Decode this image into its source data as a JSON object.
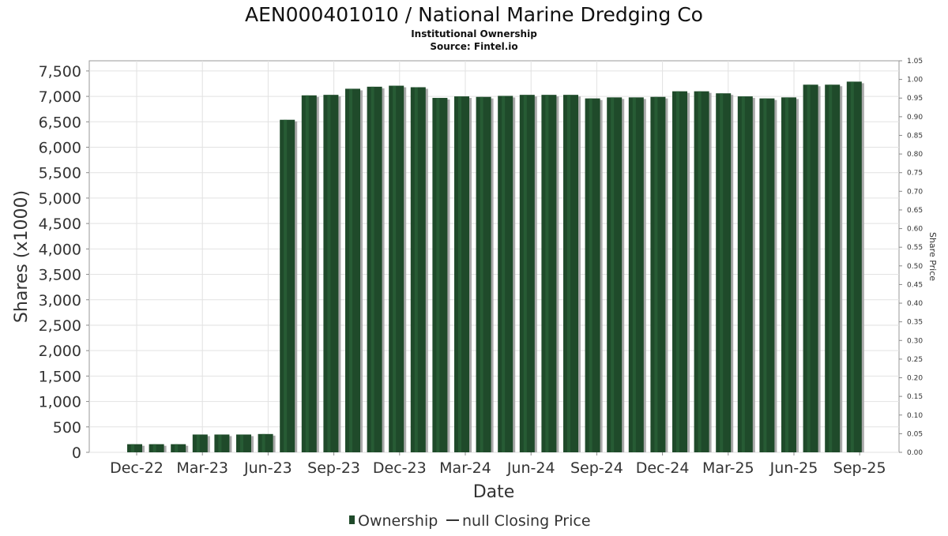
{
  "chart_data": {
    "type": "bar",
    "title": "AEN000401010 / National Marine Dredging Co",
    "subtitle": "Institutional Ownership",
    "source": "Source: Fintel.io",
    "xlabel": "Date",
    "ylabel": "Shares (x1000)",
    "y2label": "Share Price",
    "ylim": [
      0,
      7700
    ],
    "y2lim": [
      0,
      1.05
    ],
    "yticks": [
      "0",
      "500",
      "1,000",
      "1,500",
      "2,000",
      "2,500",
      "3,000",
      "3,500",
      "4,000",
      "4,500",
      "5,000",
      "5,500",
      "6,000",
      "6,500",
      "7,000",
      "7,500"
    ],
    "y2ticks": [
      "0.00",
      "0.05",
      "0.10",
      "0.15",
      "0.20",
      "0.25",
      "0.30",
      "0.35",
      "0.40",
      "0.45",
      "0.50",
      "0.55",
      "0.60",
      "0.65",
      "0.70",
      "0.75",
      "0.80",
      "0.85",
      "0.90",
      "0.95",
      "1.00",
      "1.05"
    ],
    "xticks": [
      "Dec-22",
      "Mar-23",
      "Jun-23",
      "Sep-23",
      "Dec-23",
      "Mar-24",
      "Jun-24",
      "Sep-24",
      "Dec-24",
      "Mar-25",
      "Jun-25",
      "Sep-25"
    ],
    "grid": true,
    "legend_position": "bottom",
    "series": [
      {
        "name": "Ownership",
        "color": "#1f4a2a",
        "values": [
          160,
          160,
          160,
          350,
          350,
          350,
          360,
          6540,
          7020,
          7030,
          7150,
          7190,
          7210,
          7180,
          6970,
          7000,
          6990,
          7010,
          7030,
          7030,
          7030,
          6960,
          6980,
          6980,
          6990,
          7100,
          7100,
          7060,
          7000,
          6960,
          6980,
          7230,
          7230,
          7290
        ]
      },
      {
        "name": "null Closing Price",
        "color": "#333333",
        "values": []
      }
    ]
  }
}
